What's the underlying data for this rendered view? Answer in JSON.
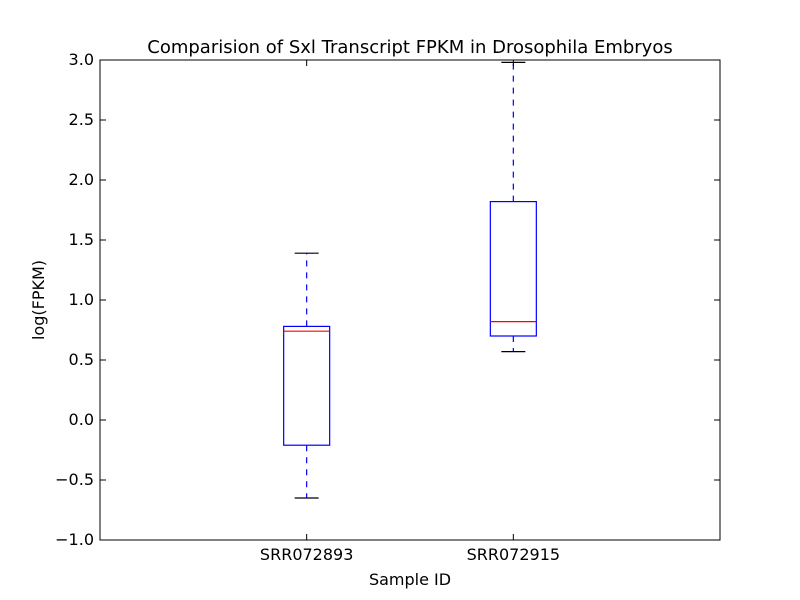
{
  "chart_data": {
    "type": "box",
    "title": "Comparision of Sxl Transcript FPKM in Drosophila Embryos",
    "xlabel": "Sample ID",
    "ylabel": "log(FPKM)",
    "ylim": [
      -1.0,
      3.0
    ],
    "yticks": [
      -1.0,
      -0.5,
      0.0,
      0.5,
      1.0,
      1.5,
      2.0,
      2.5,
      3.0
    ],
    "ytick_labels": [
      "−1.0",
      "−0.5",
      "0.0",
      "0.5",
      "1.0",
      "1.5",
      "2.0",
      "2.5",
      "3.0"
    ],
    "categories": [
      "SRR072893",
      "SRR072915"
    ],
    "boxes": [
      {
        "category": "SRR072893",
        "whisker_low": -0.65,
        "q1": -0.21,
        "median": 0.74,
        "q3": 0.78,
        "whisker_high": 1.39
      },
      {
        "category": "SRR072915",
        "whisker_low": 0.57,
        "q1": 0.7,
        "median": 0.82,
        "q3": 1.82,
        "whisker_high": 2.98
      }
    ],
    "grid": false,
    "colors": {
      "box": "#0000ff",
      "median": "#ff0000",
      "whisker": "#0000ff",
      "cap": "#000000"
    }
  }
}
